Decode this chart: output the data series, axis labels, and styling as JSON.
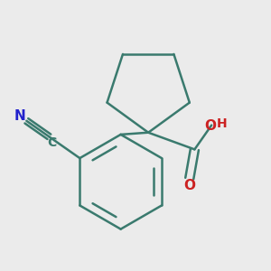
{
  "background_color": "#ebebeb",
  "bond_color": "#3a7a6e",
  "bond_width": 1.8,
  "N_color": "#2222cc",
  "O_color": "#cc2222",
  "C_color": "#3a7a6e",
  "figsize": [
    3.0,
    3.0
  ],
  "dpi": 100,
  "xlim": [
    -1.3,
    1.4
  ],
  "ylim": [
    -1.4,
    1.3
  ]
}
